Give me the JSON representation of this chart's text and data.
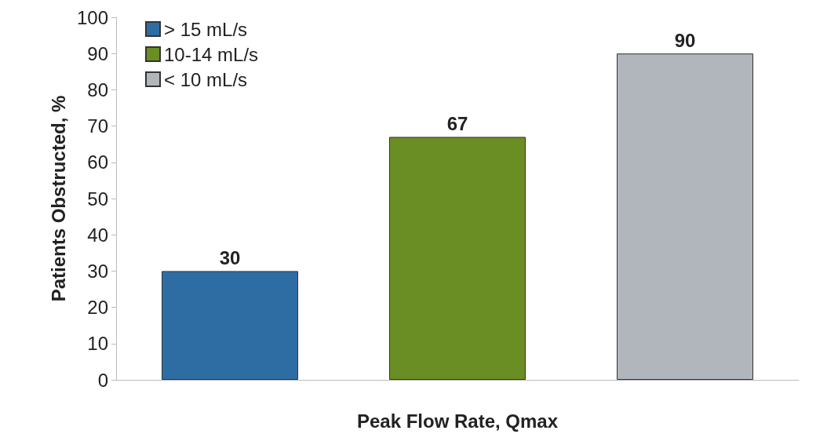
{
  "chart_data": {
    "type": "bar",
    "xlabel": "Peak Flow Rate, Qmax",
    "ylabel": "Patients Obstructed, %",
    "categories": [
      null,
      null,
      null
    ],
    "series": [
      {
        "name": "> 15 mL/s",
        "color": "#2e6da4",
        "values": [
          30,
          null,
          null
        ]
      },
      {
        "name": "10-14 mL/s",
        "color": "#6a8e23",
        "values": [
          null,
          67,
          null
        ]
      },
      {
        "name": "< 10 mL/s",
        "color": "#b1b6bc",
        "values": [
          null,
          null,
          90
        ]
      }
    ],
    "ylim": [
      0,
      100
    ],
    "yticks": [
      0,
      10,
      20,
      30,
      40,
      50,
      60,
      70,
      80,
      90,
      100
    ],
    "data_labels": true,
    "legend": "top left",
    "grid": false
  }
}
